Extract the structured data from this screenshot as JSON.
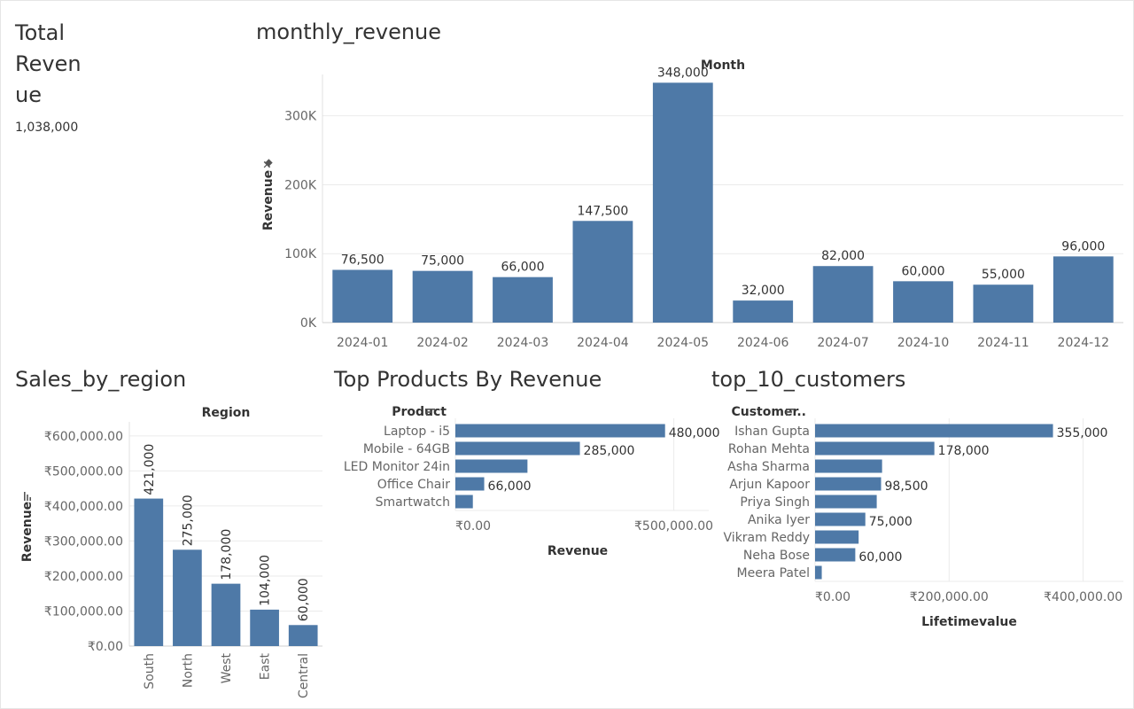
{
  "kpi": {
    "title": "Total Revenue",
    "value": "1,038,000"
  },
  "sheet_titles": {
    "monthly": "monthly_revenue",
    "region": "Sales_by_region",
    "products": "Top Products By Revenue",
    "customers": "top_10_customers"
  },
  "colors": {
    "bar": "#4e79a7",
    "grid": "#ebebeb",
    "text": "#333333",
    "tick": "#666666"
  },
  "icons": {
    "pin": "pin-icon",
    "sort": "sort-icon"
  },
  "chart_data": [
    {
      "id": "monthly",
      "type": "bar",
      "title": "monthly_revenue",
      "column_header": "Month",
      "ylabel": "Revenue",
      "ylim": [
        0,
        360000
      ],
      "yticks": [
        {
          "v": 0,
          "t": "0K"
        },
        {
          "v": 100000,
          "t": "100K"
        },
        {
          "v": 200000,
          "t": "200K"
        },
        {
          "v": 300000,
          "t": "300K"
        }
      ],
      "categories": [
        "2024-01",
        "2024-02",
        "2024-03",
        "2024-04",
        "2024-05",
        "2024-06",
        "2024-07",
        "2024-10",
        "2024-11",
        "2024-12"
      ],
      "values": [
        76500,
        75000,
        66000,
        147500,
        348000,
        32000,
        82000,
        60000,
        55000,
        96000
      ],
      "labels": [
        "76,500",
        "75,000",
        "66,000",
        "147,500",
        "348,000",
        "32,000",
        "82,000",
        "60,000",
        "55,000",
        "96,000"
      ]
    },
    {
      "id": "region",
      "type": "bar",
      "title": "Sales_by_region",
      "column_header": "Region",
      "ylabel": "Revenue",
      "ylim": [
        0,
        640000
      ],
      "yticks": [
        {
          "v": 0,
          "t": "₹0.00"
        },
        {
          "v": 100000,
          "t": "₹100,000.00"
        },
        {
          "v": 200000,
          "t": "₹200,000.00"
        },
        {
          "v": 300000,
          "t": "₹300,000.00"
        },
        {
          "v": 400000,
          "t": "₹400,000.00"
        },
        {
          "v": 500000,
          "t": "₹500,000.00"
        },
        {
          "v": 600000,
          "t": "₹600,000.00"
        }
      ],
      "categories": [
        "South",
        "North",
        "West",
        "East",
        "Central"
      ],
      "values": [
        421000,
        275000,
        178000,
        104000,
        60000
      ],
      "labels": [
        "421,000",
        "275,000",
        "178,000",
        "104,000",
        "60,000"
      ]
    },
    {
      "id": "products",
      "type": "bar",
      "orientation": "horizontal",
      "title": "Top Products By Revenue",
      "row_header": "Product",
      "xlabel": "Revenue",
      "xlim": [
        0,
        580000
      ],
      "xticks": [
        {
          "v": 0,
          "t": "₹0.00"
        },
        {
          "v": 500000,
          "t": "₹500,000.00"
        }
      ],
      "categories": [
        "Laptop - i5",
        "Mobile - 64GB",
        "LED Monitor 24in",
        "Office Chair",
        "Smartwatch"
      ],
      "values": [
        480000,
        285000,
        165000,
        66000,
        40000
      ],
      "labels": [
        "480,000",
        "285,000",
        "",
        "66,000",
        ""
      ]
    },
    {
      "id": "customers",
      "type": "bar",
      "orientation": "horizontal",
      "title": "top_10_customers",
      "row_header": "Customer..",
      "xlabel": "Lifetimevalue",
      "xlim": [
        0,
        460000
      ],
      "xticks": [
        {
          "v": 0,
          "t": "₹0.00"
        },
        {
          "v": 200000,
          "t": "₹200,000.00"
        },
        {
          "v": 400000,
          "t": "₹400,000.00"
        }
      ],
      "categories": [
        "Ishan Gupta",
        "Rohan Mehta",
        "Asha Sharma",
        "Arjun Kapoor",
        "Priya Singh",
        "Anika Iyer",
        "Vikram Reddy",
        "Neha Bose",
        "Meera Patel"
      ],
      "values": [
        355000,
        178000,
        100000,
        98500,
        92000,
        75000,
        65000,
        60000,
        10000
      ],
      "labels": [
        "355,000",
        "178,000",
        "",
        "98,500",
        "",
        "75,000",
        "",
        "60,000",
        ""
      ]
    }
  ]
}
